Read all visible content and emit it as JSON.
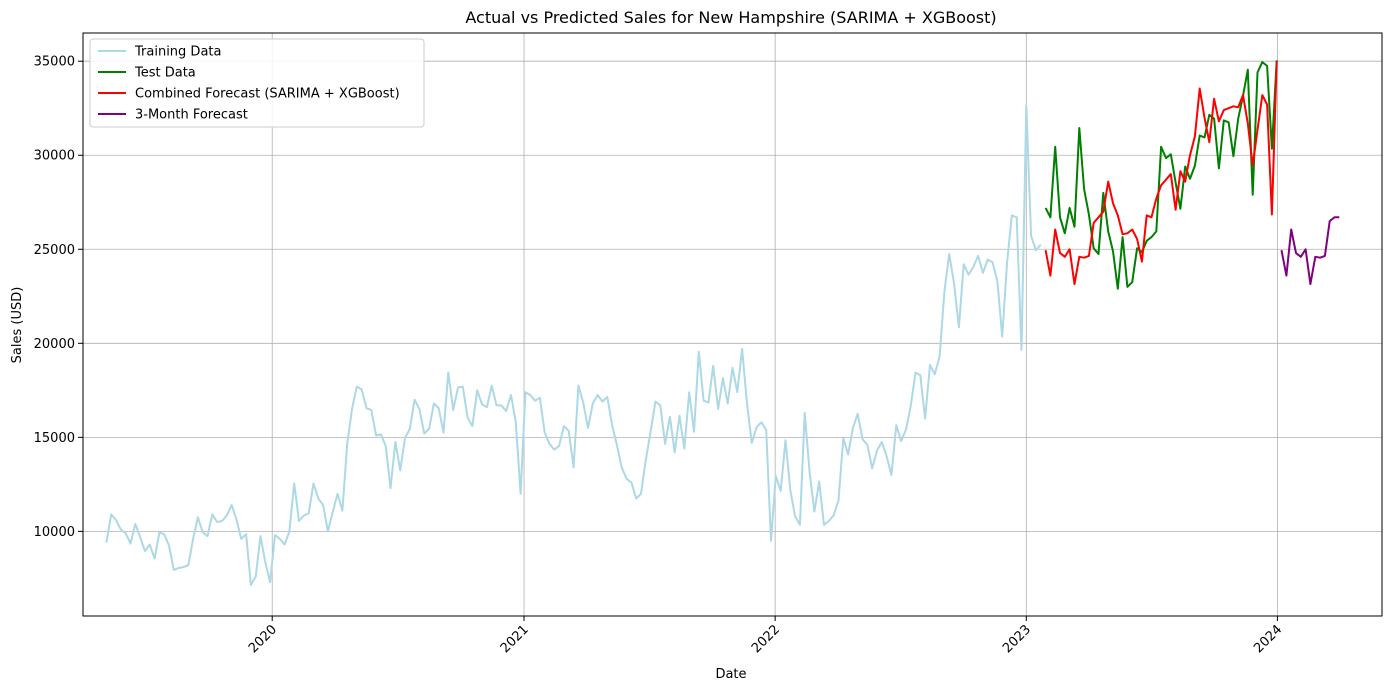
{
  "chart_data": {
    "type": "line",
    "title": "Actual vs Predicted Sales for New Hampshire (SARIMA + XGBoost)",
    "xlabel": "Date",
    "ylabel": "Sales (USD)",
    "xlim": [
      "2019-04-01",
      "2024-06-01"
    ],
    "ylim": [
      5500,
      36500
    ],
    "x_ticks": [
      "2020-01-01",
      "2021-01-01",
      "2022-01-01",
      "2023-01-01",
      "2024-01-01"
    ],
    "x_tick_labels": [
      "2020",
      "2021",
      "2022",
      "2023",
      "2024"
    ],
    "y_ticks": [
      10000,
      15000,
      20000,
      25000,
      30000,
      35000
    ],
    "y_tick_labels": [
      "10000",
      "15000",
      "20000",
      "25000",
      "30000",
      "35000"
    ],
    "grid": true,
    "legend_position": "top-left",
    "series": [
      {
        "name": "Training Data",
        "color": "#add8e6",
        "x": [
          "2019-05-05",
          "2019-05-12",
          "2019-05-19",
          "2019-05-26",
          "2019-06-02",
          "2019-06-09",
          "2019-06-16",
          "2019-06-23",
          "2019-06-30",
          "2019-07-07",
          "2019-07-14",
          "2019-07-21",
          "2019-07-28",
          "2019-08-04",
          "2019-08-11",
          "2019-08-18",
          "2019-08-25",
          "2019-09-01",
          "2019-09-08",
          "2019-09-15",
          "2019-09-22",
          "2019-09-29",
          "2019-10-06",
          "2019-10-13",
          "2019-10-20",
          "2019-10-27",
          "2019-11-03",
          "2019-11-10",
          "2019-11-17",
          "2019-11-24",
          "2019-12-01",
          "2019-12-08",
          "2019-12-15",
          "2019-12-22",
          "2019-12-29",
          "2020-01-05",
          "2020-01-12",
          "2020-01-19",
          "2020-01-26",
          "2020-02-02",
          "2020-02-09",
          "2020-02-16",
          "2020-02-23",
          "2020-03-01",
          "2020-03-08",
          "2020-03-15",
          "2020-03-22",
          "2020-03-29",
          "2020-04-05",
          "2020-04-12",
          "2020-04-19",
          "2020-04-26",
          "2020-05-03",
          "2020-05-10",
          "2020-05-17",
          "2020-05-24",
          "2020-05-31",
          "2020-06-07",
          "2020-06-14",
          "2020-06-21",
          "2020-06-28",
          "2020-07-05",
          "2020-07-12",
          "2020-07-19",
          "2020-07-26",
          "2020-08-02",
          "2020-08-09",
          "2020-08-16",
          "2020-08-23",
          "2020-08-30",
          "2020-09-06",
          "2020-09-13",
          "2020-09-20",
          "2020-09-27",
          "2020-10-04",
          "2020-10-11",
          "2020-10-18",
          "2020-10-25",
          "2020-11-01",
          "2020-11-08",
          "2020-11-15",
          "2020-11-22",
          "2020-11-29",
          "2020-12-06",
          "2020-12-13",
          "2020-12-20",
          "2020-12-27",
          "2021-01-03",
          "2021-01-10",
          "2021-01-17",
          "2021-01-24",
          "2021-01-31",
          "2021-02-07",
          "2021-02-14",
          "2021-02-21",
          "2021-02-28",
          "2021-03-07",
          "2021-03-14",
          "2021-03-21",
          "2021-03-28",
          "2021-04-04",
          "2021-04-11",
          "2021-04-18",
          "2021-04-25",
          "2021-05-02",
          "2021-05-09",
          "2021-05-16",
          "2021-05-23",
          "2021-05-30",
          "2021-06-06",
          "2021-06-13",
          "2021-06-20",
          "2021-06-27",
          "2021-07-04",
          "2021-07-11",
          "2021-07-18",
          "2021-07-25",
          "2021-08-01",
          "2021-08-08",
          "2021-08-15",
          "2021-08-22",
          "2021-08-29",
          "2021-09-05",
          "2021-09-12",
          "2021-09-19",
          "2021-09-26",
          "2021-10-03",
          "2021-10-10",
          "2021-10-17",
          "2021-10-24",
          "2021-10-31",
          "2021-11-07",
          "2021-11-14",
          "2021-11-21",
          "2021-11-28",
          "2021-12-05",
          "2021-12-12",
          "2021-12-19",
          "2021-12-26",
          "2022-01-02",
          "2022-01-09",
          "2022-01-16",
          "2022-01-23",
          "2022-01-30",
          "2022-02-06",
          "2022-02-13",
          "2022-02-20",
          "2022-02-27",
          "2022-03-06",
          "2022-03-13",
          "2022-03-20",
          "2022-03-27",
          "2022-04-03",
          "2022-04-10",
          "2022-04-17",
          "2022-04-24",
          "2022-05-01",
          "2022-05-08",
          "2022-05-15",
          "2022-05-22",
          "2022-05-29",
          "2022-06-05",
          "2022-06-12",
          "2022-06-19",
          "2022-06-26",
          "2022-07-03",
          "2022-07-10",
          "2022-07-17",
          "2022-07-24",
          "2022-07-31",
          "2022-08-07",
          "2022-08-14",
          "2022-08-21",
          "2022-08-28",
          "2022-09-04",
          "2022-09-11",
          "2022-09-18",
          "2022-09-25",
          "2022-10-02",
          "2022-10-09",
          "2022-10-16",
          "2022-10-23",
          "2022-10-30",
          "2022-11-06",
          "2022-11-13",
          "2022-11-20",
          "2022-11-27",
          "2022-12-04",
          "2022-12-11",
          "2022-12-18",
          "2022-12-25",
          "2023-01-01",
          "2023-01-08",
          "2023-01-15",
          "2023-01-22"
        ],
        "y": [
          9400,
          10900,
          10600,
          10100,
          9900,
          9350,
          10400,
          9700,
          8950,
          9300,
          8550,
          9950,
          9850,
          9250,
          7950,
          8050,
          8100,
          8200,
          9600,
          10750,
          9950,
          9750,
          10900,
          10500,
          10550,
          10850,
          11400,
          10650,
          9600,
          9850,
          7150,
          7600,
          9750,
          8350,
          7300,
          9800,
          9600,
          9300,
          10000,
          12550,
          10550,
          10850,
          10950,
          12550,
          11750,
          11400,
          10000,
          11050,
          12000,
          11100,
          14650,
          16500,
          17700,
          17550,
          16550,
          16450,
          15100,
          15150,
          14550,
          12300,
          14750,
          13250,
          14950,
          15450,
          17000,
          16500,
          15200,
          15450,
          16800,
          16550,
          15250,
          18450,
          16450,
          17650,
          17700,
          16050,
          15600,
          17500,
          16750,
          16600,
          17750,
          16700,
          16700,
          16400,
          17250,
          15800,
          12000,
          17400,
          17250,
          16950,
          17100,
          15250,
          14650,
          14350,
          14550,
          15600,
          15350,
          13400,
          17750,
          16850,
          15500,
          16800,
          17250,
          16900,
          17150,
          15650,
          14600,
          13400,
          12800,
          12600,
          11750,
          12000,
          13800,
          15300,
          16900,
          16700,
          14650,
          16100,
          14200,
          16150,
          14400,
          17400,
          15300,
          19550,
          16950,
          16850,
          18800,
          16500,
          18150,
          16800,
          18700,
          17400,
          19700,
          16850,
          14700,
          15550,
          15800,
          15400,
          9500,
          12950,
          12150,
          14850,
          12200,
          10800,
          10350,
          16300,
          13150,
          11050,
          12650,
          10350,
          10550,
          10850,
          11650,
          14950,
          14100,
          15500,
          16250,
          14900,
          14600,
          13350,
          14300,
          14750,
          14000,
          13000,
          15650,
          14800,
          15400,
          16650,
          18450,
          18300,
          16000,
          18850,
          18350,
          19300,
          22750,
          24750,
          23200,
          20850,
          24200,
          23650,
          24050,
          24650,
          23750,
          24450,
          24300,
          23300,
          20350,
          24250,
          26800,
          26700,
          19650,
          32650,
          25700,
          24950,
          25250
        ]
      },
      {
        "name": "Test Data",
        "color": "#008000",
        "x": [
          "2023-01-29",
          "2023-02-05",
          "2023-02-12",
          "2023-02-19",
          "2023-02-26",
          "2023-03-05",
          "2023-03-12",
          "2023-03-19",
          "2023-03-26",
          "2023-04-02",
          "2023-04-09",
          "2023-04-16",
          "2023-04-23",
          "2023-04-30",
          "2023-05-07",
          "2023-05-14",
          "2023-05-21",
          "2023-05-28",
          "2023-06-04",
          "2023-06-11",
          "2023-06-18",
          "2023-06-25",
          "2023-07-02",
          "2023-07-09",
          "2023-07-16",
          "2023-07-23",
          "2023-07-30",
          "2023-08-06",
          "2023-08-13",
          "2023-08-20",
          "2023-08-27",
          "2023-09-03",
          "2023-09-10",
          "2023-09-17",
          "2023-09-24",
          "2023-10-01",
          "2023-10-08",
          "2023-10-15",
          "2023-10-22",
          "2023-10-29",
          "2023-11-05",
          "2023-11-12",
          "2023-11-19",
          "2023-11-26",
          "2023-12-03",
          "2023-12-10",
          "2023-12-17",
          "2023-12-24",
          "2023-12-31"
        ],
        "y": [
          27200,
          26700,
          30450,
          26700,
          25850,
          27200,
          26200,
          31450,
          28200,
          26850,
          25050,
          24750,
          28000,
          25950,
          24900,
          22900,
          25650,
          23000,
          23250,
          25050,
          24850,
          25450,
          25650,
          25950,
          30450,
          29850,
          30050,
          28550,
          27150,
          29400,
          28750,
          29450,
          31050,
          30950,
          32150,
          31950,
          29300,
          31850,
          31750,
          29950,
          31950,
          33150,
          34550,
          27900,
          34400,
          34950,
          34750,
          30350,
          35050
        ]
      },
      {
        "name": "Combined Forecast (SARIMA + XGBoost)",
        "color": "#ff0000",
        "x": [
          "2023-01-29",
          "2023-02-05",
          "2023-02-12",
          "2023-02-19",
          "2023-02-26",
          "2023-03-05",
          "2023-03-12",
          "2023-03-19",
          "2023-03-26",
          "2023-04-02",
          "2023-04-09",
          "2023-04-16",
          "2023-04-23",
          "2023-04-30",
          "2023-05-07",
          "2023-05-14",
          "2023-05-21",
          "2023-05-28",
          "2023-06-04",
          "2023-06-11",
          "2023-06-18",
          "2023-06-25",
          "2023-07-02",
          "2023-07-09",
          "2023-07-16",
          "2023-07-23",
          "2023-07-30",
          "2023-08-06",
          "2023-08-13",
          "2023-08-20",
          "2023-08-27",
          "2023-09-03",
          "2023-09-10",
          "2023-09-17",
          "2023-09-24",
          "2023-10-01",
          "2023-10-08",
          "2023-10-15",
          "2023-10-22",
          "2023-10-29",
          "2023-11-05",
          "2023-11-12",
          "2023-11-19",
          "2023-11-26",
          "2023-12-03",
          "2023-12-10",
          "2023-12-17",
          "2023-12-24",
          "2023-12-31"
        ],
        "y": [
          24950,
          23600,
          26050,
          24800,
          24600,
          25000,
          23150,
          24600,
          24550,
          24650,
          26400,
          26700,
          27000,
          28600,
          27450,
          26800,
          25800,
          25850,
          26050,
          25550,
          24350,
          26800,
          26700,
          27700,
          28400,
          28700,
          29000,
          27100,
          29150,
          28600,
          30000,
          31000,
          33550,
          32000,
          30700,
          33000,
          31800,
          32400,
          32500,
          32600,
          32550,
          33200,
          31700,
          29450,
          31350,
          33200,
          32700,
          26850,
          35000
        ]
      },
      {
        "name": "3-Month Forecast",
        "color": "#800080",
        "x": [
          "2024-01-07",
          "2024-01-14",
          "2024-01-21",
          "2024-01-28",
          "2024-02-04",
          "2024-02-11",
          "2024-02-18",
          "2024-02-25",
          "2024-03-03",
          "2024-03-10",
          "2024-03-17",
          "2024-03-24",
          "2024-03-31"
        ],
        "y": [
          24950,
          23600,
          26050,
          24800,
          24600,
          25000,
          23150,
          24600,
          24550,
          24650,
          26500,
          26700,
          26700
        ]
      }
    ]
  }
}
